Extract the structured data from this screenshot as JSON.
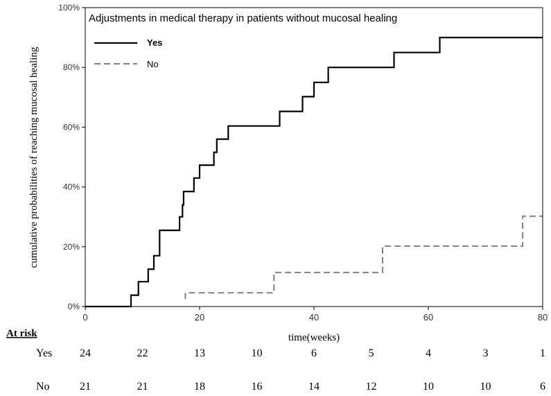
{
  "chart_data": {
    "type": "line",
    "title": "Adjustments in medical therapy in patients without mucosal healing",
    "xlabel": "time(weeks)",
    "ylabel": "cumulative probabilities of reaching mucosal healing",
    "xlim": [
      0,
      80
    ],
    "ylim": [
      0,
      100
    ],
    "x_ticks": [
      0,
      20,
      40,
      60,
      80
    ],
    "x_tick_labels": [
      "0",
      "20",
      "40",
      "60",
      "80"
    ],
    "y_ticks": [
      0,
      20,
      40,
      60,
      80,
      100
    ],
    "y_tick_labels": [
      "0%",
      "20%",
      "40%",
      "60%",
      "80%",
      "100%"
    ],
    "legend_position": "top-left",
    "grid": false,
    "series": [
      {
        "name": "Yes",
        "style": "solid",
        "color": "#000000",
        "steps": [
          [
            0,
            0
          ],
          [
            8,
            0
          ],
          [
            8,
            3.8
          ],
          [
            9.3,
            3.8
          ],
          [
            9.3,
            8.3
          ],
          [
            11,
            8.3
          ],
          [
            11,
            12.5
          ],
          [
            12,
            12.5
          ],
          [
            12,
            17
          ],
          [
            13,
            17
          ],
          [
            13,
            25.5
          ],
          [
            16.5,
            25.5
          ],
          [
            16.5,
            30
          ],
          [
            17,
            30
          ],
          [
            17,
            34
          ],
          [
            17.2,
            34
          ],
          [
            17.2,
            38.5
          ],
          [
            19,
            38.5
          ],
          [
            19,
            43
          ],
          [
            20,
            43
          ],
          [
            20,
            47.3
          ],
          [
            22.5,
            47.3
          ],
          [
            22.5,
            51.6
          ],
          [
            23,
            51.6
          ],
          [
            23,
            56
          ],
          [
            25,
            56
          ],
          [
            25,
            60.4
          ],
          [
            34,
            60.4
          ],
          [
            34,
            65.3
          ],
          [
            38,
            65.3
          ],
          [
            38,
            70.2
          ],
          [
            40,
            70.2
          ],
          [
            40,
            75
          ],
          [
            42.5,
            75
          ],
          [
            42.5,
            80
          ],
          [
            54,
            80
          ],
          [
            54,
            85
          ],
          [
            62,
            85
          ],
          [
            62,
            90
          ],
          [
            80,
            90
          ]
        ]
      },
      {
        "name": "No",
        "style": "dashed",
        "color": "#808080",
        "steps": [
          [
            17.5,
            2.5
          ],
          [
            17.5,
            4.6
          ],
          [
            33,
            4.6
          ],
          [
            33,
            11.4
          ],
          [
            52,
            11.4
          ],
          [
            52,
            20.2
          ],
          [
            76.5,
            20.2
          ],
          [
            76.5,
            30.2
          ],
          [
            80,
            30.2
          ]
        ]
      }
    ]
  },
  "at_risk": {
    "heading": "At risk",
    "rows": [
      {
        "label": "Yes",
        "values": [
          "24",
          "22",
          "13",
          "10",
          "6",
          "5",
          "4",
          "3",
          "1"
        ]
      },
      {
        "label": "No",
        "values": [
          "21",
          "21",
          "18",
          "16",
          "14",
          "12",
          "10",
          "10",
          "6"
        ]
      }
    ]
  }
}
